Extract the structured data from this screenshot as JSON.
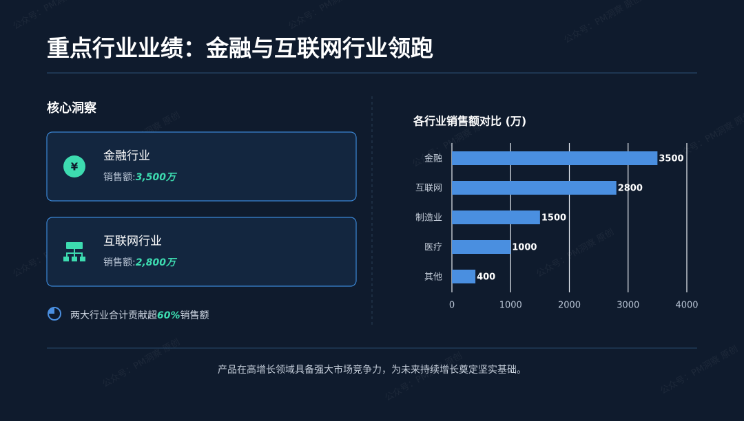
{
  "header": {
    "title": "重点行业业绩：金融与互联网行业领跑"
  },
  "insights": {
    "heading": "核心洞察",
    "cards": [
      {
        "title": "金融行业",
        "label": "销售额:",
        "value": "3,500万"
      },
      {
        "title": "互联网行业",
        "label": "销售额:",
        "value": "2,800万"
      }
    ],
    "note": {
      "before": "两大行业合计贡献超",
      "highlight": "60%",
      "after": "销售额"
    }
  },
  "chart_data": {
    "type": "bar",
    "orientation": "horizontal",
    "title": "各行业销售额对比 (万)",
    "categories": [
      "金融",
      "互联网",
      "制造业",
      "医疗",
      "其他"
    ],
    "values": [
      3500,
      2800,
      1500,
      1000,
      400
    ],
    "color": "#4a8fe0",
    "xlim": [
      0,
      4000
    ],
    "xticks": [
      0,
      1000,
      2000,
      3000,
      4000
    ],
    "grid": true
  },
  "footer": {
    "text": "产品在高增长领域具备强大市场竞争力，为未来持续增长奠定坚实基础。"
  },
  "watermark": "公众号：PM洞察 原创"
}
